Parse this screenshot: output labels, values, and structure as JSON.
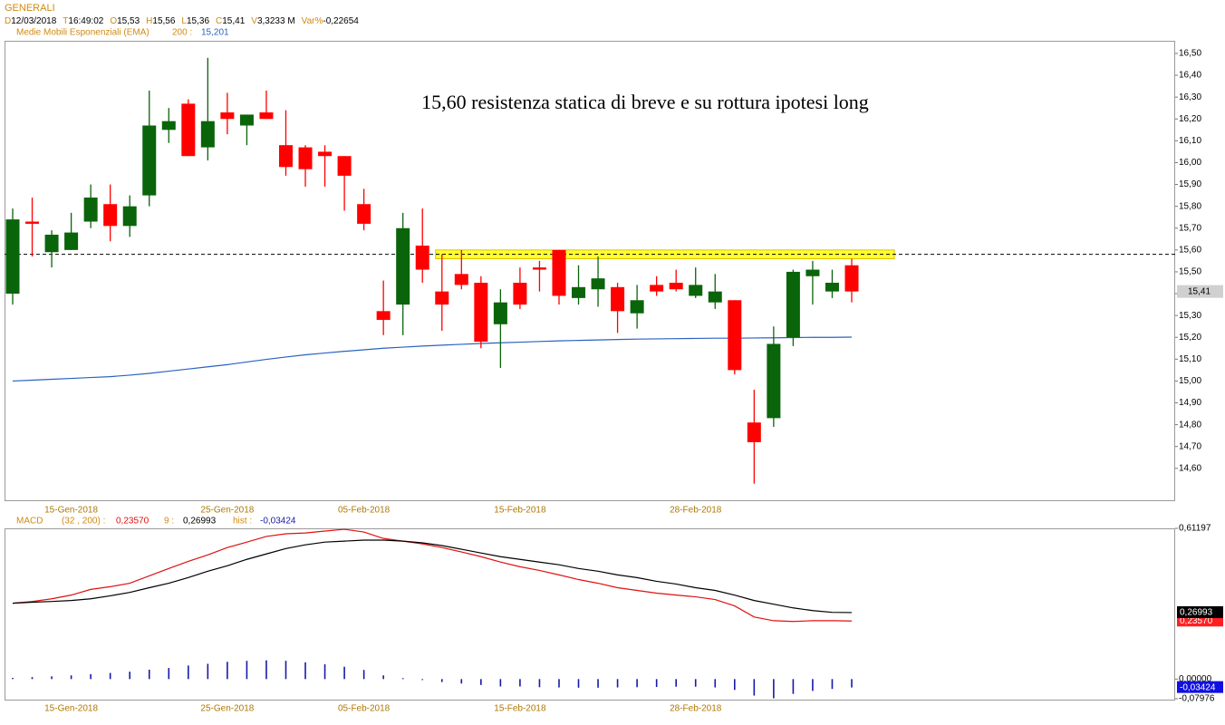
{
  "chart_data": [
    {
      "type": "candlestick",
      "title": "GENERALI",
      "info": [
        {
          "key": "D",
          "value": "12/03/2018"
        },
        {
          "key": "T",
          "value": "16:49:02"
        },
        {
          "key": "O",
          "value": "15,53"
        },
        {
          "key": "H",
          "value": "15,56"
        },
        {
          "key": "L",
          "value": "15,36"
        },
        {
          "key": "C",
          "value": "15,41"
        },
        {
          "key": "V",
          "value": "3,3233 M"
        },
        {
          "key": "Var%",
          "value": "-0,22654"
        }
      ],
      "annotation": "15,60 resistenza statica di breve e su rottura ipotesi long",
      "categories": [
        null,
        null,
        null,
        "15-Gen-2018",
        null,
        null,
        null,
        null,
        null,
        null,
        null,
        "25-Gen-2018",
        null,
        null,
        null,
        null,
        null,
        null,
        "05-Feb-2018",
        null,
        null,
        null,
        null,
        null,
        null,
        null,
        "15-Feb-2018",
        null,
        null,
        null,
        null,
        null,
        null,
        null,
        null,
        "28-Feb-2018",
        null,
        null,
        null,
        null,
        null,
        null,
        null,
        null
      ],
      "open": [
        15.4,
        15.73,
        15.59,
        15.6,
        15.73,
        15.81,
        15.71,
        15.85,
        16.15,
        16.27,
        16.07,
        16.23,
        16.17,
        16.23,
        16.08,
        16.07,
        16.05,
        16.03,
        15.81,
        15.32,
        15.35,
        15.62,
        15.41,
        15.49,
        15.45,
        15.26,
        15.45,
        15.52,
        15.6,
        15.38,
        15.42,
        15.43,
        15.31,
        15.44,
        15.45,
        15.39,
        15.36,
        15.37,
        14.81,
        14.83,
        15.2,
        15.48,
        15.41,
        15.53
      ],
      "high": [
        15.79,
        15.84,
        15.69,
        15.77,
        15.9,
        15.9,
        15.85,
        16.33,
        16.25,
        16.29,
        16.48,
        16.32,
        16.22,
        16.33,
        16.24,
        16.08,
        16.08,
        16.03,
        15.88,
        15.46,
        15.77,
        15.79,
        15.58,
        15.6,
        15.48,
        15.42,
        15.52,
        15.55,
        15.6,
        15.53,
        15.57,
        15.45,
        15.44,
        15.48,
        15.51,
        15.52,
        15.49,
        15.37,
        14.96,
        15.25,
        15.51,
        15.55,
        15.51,
        15.56
      ],
      "low": [
        15.35,
        15.57,
        15.52,
        15.6,
        15.7,
        15.64,
        15.66,
        15.8,
        16.09,
        16.03,
        16.01,
        16.13,
        16.08,
        16.2,
        15.94,
        15.89,
        15.89,
        15.78,
        15.69,
        15.21,
        15.21,
        15.45,
        15.23,
        15.42,
        15.15,
        15.06,
        15.33,
        15.41,
        15.35,
        15.35,
        15.34,
        15.22,
        15.24,
        15.39,
        15.41,
        15.38,
        15.33,
        15.03,
        14.53,
        14.79,
        15.16,
        15.35,
        15.38,
        15.36
      ],
      "close": [
        15.74,
        15.72,
        15.67,
        15.68,
        15.84,
        15.71,
        15.8,
        16.17,
        16.19,
        16.03,
        16.19,
        16.2,
        16.22,
        16.2,
        15.98,
        15.97,
        16.03,
        15.94,
        15.72,
        15.28,
        15.7,
        15.51,
        15.35,
        15.44,
        15.18,
        15.36,
        15.35,
        15.51,
        15.39,
        15.43,
        15.47,
        15.32,
        15.37,
        15.41,
        15.42,
        15.44,
        15.41,
        15.05,
        14.72,
        15.17,
        15.5,
        15.51,
        15.45,
        15.41
      ],
      "up_color": "#0a640a",
      "down_color": "#ff0000",
      "series": [
        {
          "name": "Medie Mobili Esponenziali (EMA)",
          "period": "200 :",
          "legend_value": "15,201",
          "color": "#2a62c0",
          "values": [
            15.0,
            15.004,
            15.008,
            15.012,
            15.016,
            15.02,
            15.027,
            15.035,
            15.045,
            15.055,
            15.065,
            15.075,
            15.087,
            15.099,
            15.11,
            15.12,
            15.128,
            15.136,
            15.143,
            15.15,
            15.155,
            15.16,
            15.164,
            15.168,
            15.172,
            15.175,
            15.178,
            15.181,
            15.184,
            15.186,
            15.188,
            15.19,
            15.192,
            15.193,
            15.194,
            15.195,
            15.196,
            15.196,
            15.197,
            15.198,
            15.199,
            15.2,
            15.2,
            15.201
          ]
        }
      ],
      "zone": {
        "low": 15.56,
        "high": 15.6,
        "from": 22,
        "color": "#ffff33"
      },
      "hline": 15.58,
      "price_label": "15,41",
      "ylim": [
        14.454,
        16.558
      ],
      "yticks": [
        {
          "value": 14.6,
          "label": "14,60"
        },
        {
          "value": 14.7,
          "label": "14,70"
        },
        {
          "value": 14.8,
          "label": "14,80"
        },
        {
          "value": 14.9,
          "label": "14,90"
        },
        {
          "value": 15.0,
          "label": "15,00"
        },
        {
          "value": 15.1,
          "label": "15,10"
        },
        {
          "value": 15.2,
          "label": "15,20"
        },
        {
          "value": 15.3,
          "label": "15,30"
        },
        {
          "value": 15.4,
          "label": "15,40"
        },
        {
          "value": 15.5,
          "label": "15,50"
        },
        {
          "value": 15.6,
          "label": "15,60"
        },
        {
          "value": 15.7,
          "label": "15,70"
        },
        {
          "value": 15.8,
          "label": "15,80"
        },
        {
          "value": 15.9,
          "label": "15,90"
        },
        {
          "value": 16.0,
          "label": "16,00"
        },
        {
          "value": 16.1,
          "label": "16,10"
        },
        {
          "value": 16.2,
          "label": "16,20"
        },
        {
          "value": 16.3,
          "label": "16,30"
        },
        {
          "value": 16.4,
          "label": "16,40"
        },
        {
          "value": 16.5,
          "label": "16,50"
        }
      ],
      "grid": false
    },
    {
      "type": "macd",
      "title": "MACD",
      "categories": [
        null,
        null,
        null,
        "15-Gen-2018",
        null,
        null,
        null,
        null,
        null,
        null,
        null,
        "25-Gen-2018",
        null,
        null,
        null,
        null,
        null,
        null,
        "05-Feb-2018",
        null,
        null,
        null,
        null,
        null,
        null,
        null,
        "15-Feb-2018",
        null,
        null,
        null,
        null,
        null,
        null,
        null,
        null,
        "28-Feb-2018",
        null,
        null,
        null,
        null,
        null,
        null,
        null,
        null
      ],
      "series": [
        {
          "name": "(32 , 200) :",
          "legend_value": "0,23570",
          "color": "#e01010",
          "label_bg": "#ff2020",
          "values": [
            0.308,
            0.315,
            0.326,
            0.341,
            0.364,
            0.375,
            0.389,
            0.419,
            0.449,
            0.478,
            0.504,
            0.534,
            0.556,
            0.579,
            0.59,
            0.593,
            0.601,
            0.608,
            0.597,
            0.571,
            0.56,
            0.549,
            0.534,
            0.516,
            0.497,
            0.475,
            0.456,
            0.441,
            0.423,
            0.404,
            0.389,
            0.371,
            0.36,
            0.349,
            0.341,
            0.334,
            0.323,
            0.297,
            0.252,
            0.237,
            0.234,
            0.237,
            0.237,
            0.2357
          ]
        },
        {
          "name": "9 :",
          "legend_value": "0,26993",
          "color": "#000000",
          "label_bg": "#000000",
          "values": [
            0.308,
            0.312,
            0.315,
            0.319,
            0.326,
            0.338,
            0.352,
            0.371,
            0.389,
            0.412,
            0.438,
            0.46,
            0.486,
            0.508,
            0.53,
            0.545,
            0.556,
            0.56,
            0.564,
            0.564,
            0.56,
            0.553,
            0.542,
            0.527,
            0.512,
            0.497,
            0.486,
            0.475,
            0.464,
            0.449,
            0.438,
            0.423,
            0.412,
            0.397,
            0.386,
            0.371,
            0.36,
            0.341,
            0.319,
            0.304,
            0.289,
            0.278,
            0.271,
            0.26993
          ]
        },
        {
          "name": "hist :",
          "legend_value": "-0,03424",
          "color": "#1818a8",
          "label_bg": "#1010e0",
          "kind": "bar",
          "values": [
            0.005,
            0.008,
            0.011,
            0.015,
            0.02,
            0.025,
            0.03,
            0.038,
            0.045,
            0.055,
            0.062,
            0.07,
            0.074,
            0.076,
            0.074,
            0.068,
            0.06,
            0.05,
            0.037,
            0.015,
            0.004,
            -0.004,
            -0.012,
            -0.018,
            -0.024,
            -0.03,
            -0.03,
            -0.033,
            -0.034,
            -0.035,
            -0.035,
            -0.034,
            -0.033,
            -0.032,
            -0.031,
            -0.031,
            -0.034,
            -0.044,
            -0.067,
            -0.078,
            -0.06,
            -0.048,
            -0.04,
            -0.03424
          ]
        }
      ],
      "ylim": [
        -0.07976,
        0.61197
      ],
      "yticks": [
        {
          "value": -0.07976,
          "label": "-0,07976"
        },
        {
          "value": 0,
          "label": "0,00000"
        },
        {
          "value": 0.61197,
          "label": "0,61197"
        }
      ],
      "grid": false
    }
  ]
}
